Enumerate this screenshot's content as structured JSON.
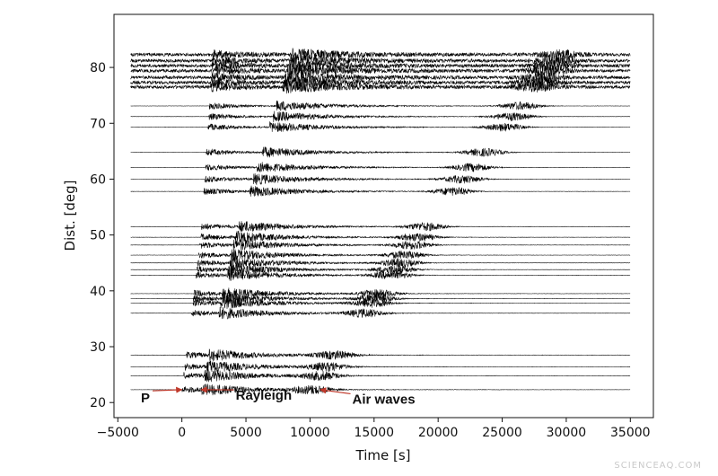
{
  "chart_data": {
    "type": "line",
    "title": "",
    "xlabel": "Time [s]",
    "ylabel": "Dist. [deg]",
    "xlim": [
      -5300,
      36800
    ],
    "ylim": [
      17.3,
      89.5
    ],
    "xticks": [
      -5000,
      0,
      5000,
      10000,
      15000,
      20000,
      25000,
      30000,
      35000
    ],
    "xtick_labels": [
      "−5000",
      "0",
      "5000",
      "10000",
      "15000",
      "20000",
      "25000",
      "30000",
      "35000"
    ],
    "yticks": [
      20,
      30,
      40,
      50,
      60,
      70,
      80
    ],
    "ytick_labels": [
      "20",
      "30",
      "40",
      "50",
      "60",
      "70",
      "80"
    ],
    "grid": false,
    "trace_start_s": -4000,
    "trace_end_s": 35000,
    "station_distances_deg": [
      22.3,
      24.8,
      26.4,
      28.5,
      36.0,
      37.8,
      38.6,
      39.5,
      42.8,
      43.8,
      45.0,
      46.4,
      48.2,
      49.6,
      51.5,
      57.8,
      60.0,
      62.1,
      64.8,
      69.3,
      71.2,
      73.1,
      76.5,
      77.3,
      78.2,
      79.4,
      80.3,
      81.2,
      82.3
    ],
    "arrival_curves": [
      {
        "label": "P",
        "x": [
          0,
          1500,
          2400
        ],
        "y": [
          22,
          50,
          82
        ]
      },
      {
        "label": "Rayleigh",
        "x": [
          1500,
          4200,
          8600
        ],
        "y": [
          22,
          50,
          82
        ]
      },
      {
        "label": "Air waves",
        "x": [
          10000,
          18500,
          29500
        ],
        "y": [
          22,
          50,
          82
        ]
      }
    ],
    "annotations": [
      {
        "text": "P",
        "x": -3200,
        "y": 20.0,
        "arrow_to": [
          0,
          22.3
        ],
        "arrow_color": "#c0392b"
      },
      {
        "text": "Rayleigh",
        "x": 4200,
        "y": 20.5,
        "arrow_to": [
          1500,
          22.3
        ],
        "arrow_color": "#c0392b"
      },
      {
        "text": "Air waves",
        "x": 13300,
        "y": 19.8,
        "arrow_to": [
          10800,
          22.3
        ],
        "arrow_color": "#c0392b"
      }
    ],
    "trace_color": "#000000"
  },
  "watermark": "SCIENCEAQ.COM"
}
